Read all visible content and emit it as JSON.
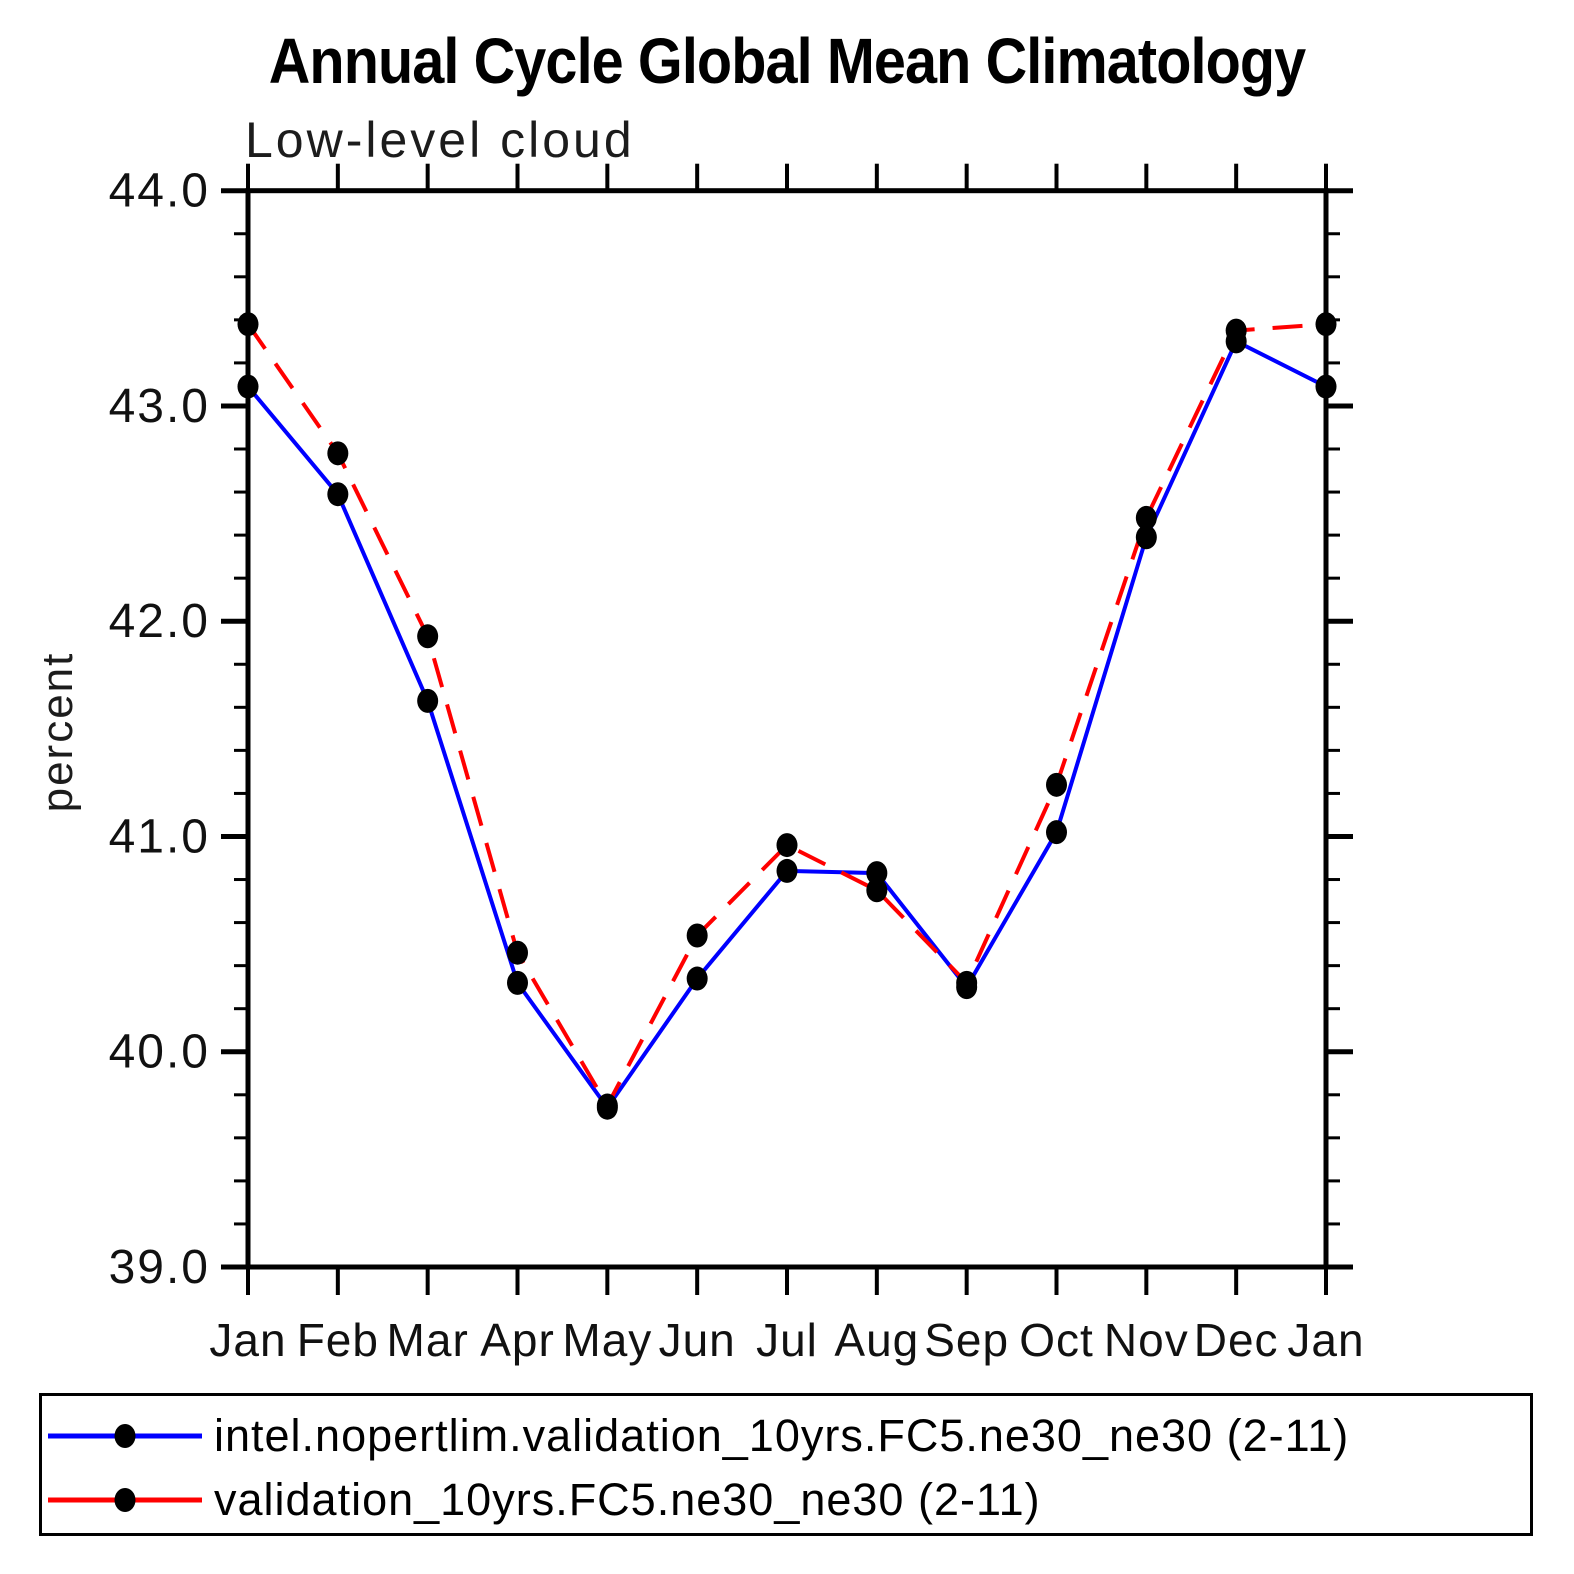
{
  "chart_data": {
    "type": "line",
    "title": "Annual Cycle Global Mean Climatology",
    "subtitle": "Low-level cloud",
    "ylabel": "percent",
    "xlabel": "",
    "categories": [
      "Jan",
      "Feb",
      "Mar",
      "Apr",
      "May",
      "Jun",
      "Jul",
      "Aug",
      "Sep",
      "Oct",
      "Nov",
      "Dec",
      "Jan"
    ],
    "ylim": [
      39.0,
      44.0
    ],
    "y_major_tick_labels": [
      "39.0",
      "40.0",
      "41.0",
      "42.0",
      "43.0",
      "44.0"
    ],
    "y_minor_step": 0.2,
    "grid": false,
    "legend_position": "bottom-box",
    "axis_color": "#000000",
    "marker": "filled-circle",
    "marker_color": "#000000",
    "series": [
      {
        "name": "intel.nopertlim.validation_10yrs.FC5.ne30_ne30 (2-11)",
        "color": "#0000ff",
        "line_style": "solid",
        "values": [
          43.09,
          42.59,
          41.63,
          40.32,
          39.74,
          40.34,
          40.84,
          40.83,
          40.3,
          41.02,
          42.39,
          43.3,
          43.09
        ]
      },
      {
        "name": "validation_10yrs.FC5.ne30_ne30 (2-11)",
        "color": "#ff0000",
        "line_style": "dashed",
        "values": [
          43.38,
          42.78,
          41.93,
          40.46,
          39.75,
          40.54,
          40.96,
          40.75,
          40.32,
          41.24,
          42.48,
          43.35,
          43.38
        ]
      }
    ]
  }
}
